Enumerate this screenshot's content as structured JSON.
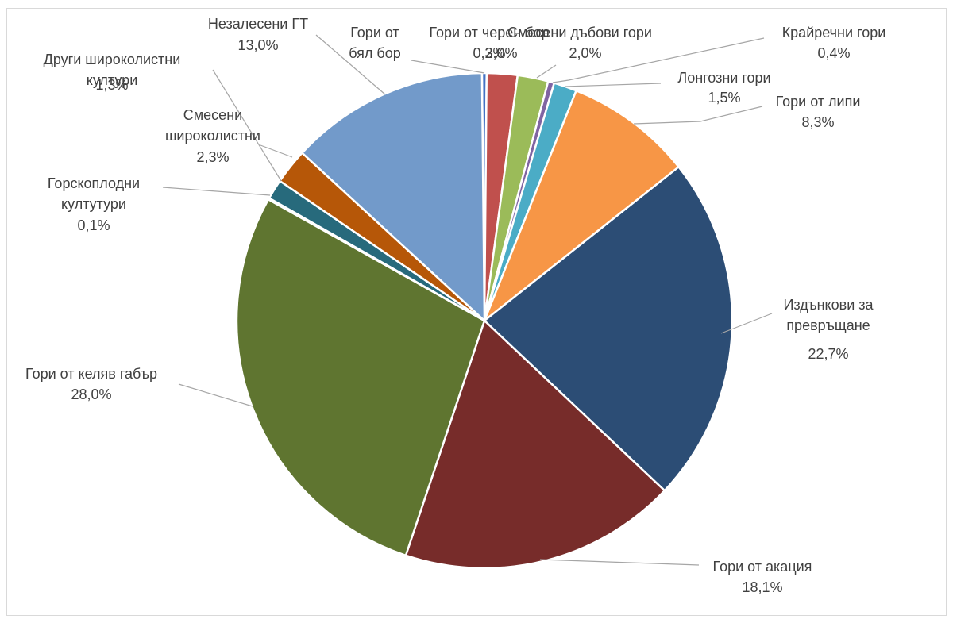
{
  "chart_data": {
    "type": "pie",
    "title": "",
    "slices": [
      {
        "name": "Гори от бял бор",
        "value": 0.3,
        "label": "0,3%",
        "color": "#4472c4"
      },
      {
        "name": "Гори от черен бор",
        "value": 2.0,
        "label": "2,0%",
        "color": "#c0504d"
      },
      {
        "name": "Смесени дъбови гори",
        "value": 2.0,
        "label": "2,0%",
        "color": "#9bbb59"
      },
      {
        "name": "Крайречни гори",
        "value": 0.4,
        "label": "0,4%",
        "color": "#8064a2"
      },
      {
        "name": "Лонгозни гори",
        "value": 1.5,
        "label": "1,5%",
        "color": "#4bacc6"
      },
      {
        "name": "Гори от липи",
        "value": 8.3,
        "label": "8,3%",
        "color": "#f79646"
      },
      {
        "name": "Издънкови за превръщане",
        "value": 22.7,
        "label": "22,7%",
        "color": "#2c4d75"
      },
      {
        "name": "Гори от акация",
        "value": 18.1,
        "label": "18,1%",
        "color": "#772c2a"
      },
      {
        "name": "Гори от келяв габър",
        "value": 28.0,
        "label": "28,0%",
        "color": "#5f7530"
      },
      {
        "name": "Горскоплодни култутури",
        "value": 0.1,
        "label": "0,1%",
        "color": "#4d3b62"
      },
      {
        "name": "Други широколистни култури",
        "value": 1.3,
        "label": "1,3%",
        "color": "#276a7c"
      },
      {
        "name": "Смесени широколистни",
        "value": 2.3,
        "label": "2,3%",
        "color": "#b65708"
      },
      {
        "name": "Незалесени ГТ",
        "value": 13.0,
        "label": "13,0%",
        "color": "#729aca"
      }
    ]
  }
}
